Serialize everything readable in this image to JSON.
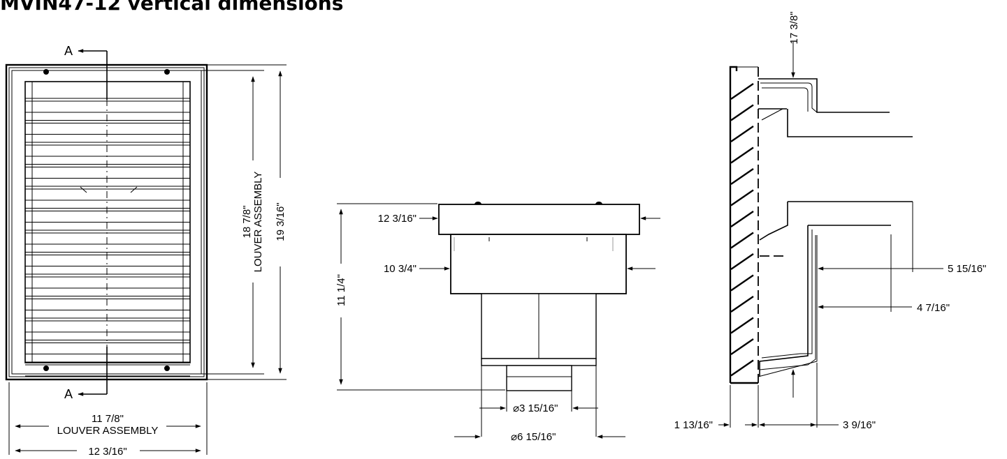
{
  "title": "MVIN47-12 vertical dimensions",
  "front_view": {
    "section_mark_top": "A",
    "section_mark_bottom": "A",
    "louver_height": "18 7/8\"",
    "louver_height_label": "LOUVER ASSEMBLY",
    "overall_height": "19 3/16\"",
    "louver_width": "11 7/8\"",
    "louver_width_label": "LOUVER ASSEMBLY",
    "overall_width": "12 3/16\""
  },
  "side_view": {
    "flange_width": "12 3/16\"",
    "body_width": "10 3/4\"",
    "height": "11 1/4\"",
    "inner_duct_diameter": "⌀3 15/16\"",
    "outer_duct_diameter": "⌀6 15/16\""
  },
  "section_view": {
    "top_dim": "17 3/8\"",
    "outer_depth": "5 15/16\"",
    "inner_depth": "4 7/16\"",
    "grille_depth": "1 13/16\"",
    "housing_depth": "3 9/16\""
  }
}
